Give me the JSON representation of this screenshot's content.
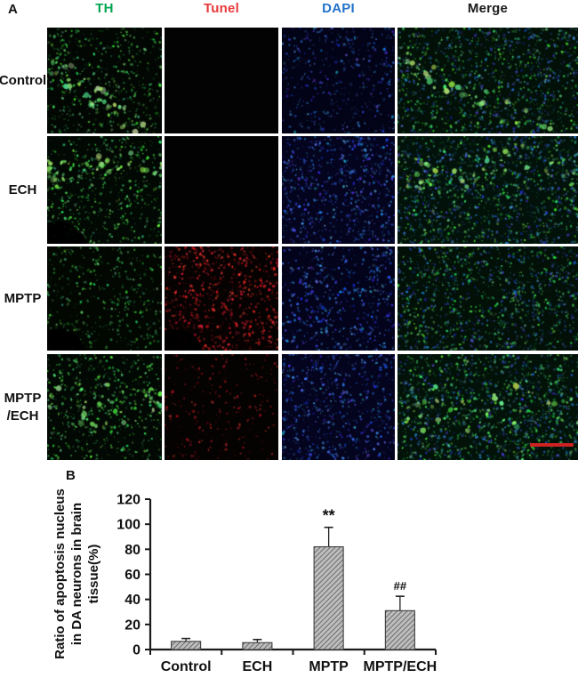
{
  "figure": {
    "panel_a_label": "A",
    "panel_b_label": "B"
  },
  "panel_a": {
    "columns": [
      {
        "label": "TH",
        "color": "#00A550"
      },
      {
        "label": "Tunel",
        "color": "#E8393B"
      },
      {
        "label": "DAPI",
        "color": "#2272C8"
      },
      {
        "label": "Merge",
        "color": "#1A1A1A"
      }
    ],
    "rows": [
      {
        "label": "Control",
        "lines": [
          "Control"
        ]
      },
      {
        "label": "ECH",
        "lines": [
          "ECH"
        ]
      },
      {
        "label": "MPTP",
        "lines": [
          "MPTP"
        ]
      },
      {
        "label": "MPTP/ECH",
        "lines": [
          "MPTP",
          "/ECH"
        ]
      }
    ],
    "cells": [
      {
        "name": "control-th",
        "bg": "#020703",
        "channels": {
          "green": 0.55
        },
        "band": "diag"
      },
      {
        "name": "control-tunel",
        "bg": "#040303",
        "channels": {}
      },
      {
        "name": "control-dapi",
        "bg": "#030317",
        "channels": {
          "blue": 0.5
        }
      },
      {
        "name": "control-merge",
        "bg": "#021007",
        "channels": {
          "green": 0.5,
          "blue": 0.45
        },
        "band": "diag"
      },
      {
        "name": "ech-th",
        "bg": "#020803",
        "channels": {
          "green": 0.6
        },
        "band": "mid",
        "darkblob": true
      },
      {
        "name": "ech-tunel",
        "bg": "#030202",
        "channels": {}
      },
      {
        "name": "ech-dapi",
        "bg": "#04041e",
        "channels": {
          "blue": 0.75
        }
      },
      {
        "name": "ech-merge",
        "bg": "#02120a",
        "channels": {
          "green": 0.55,
          "blue": 0.5
        },
        "band": "mid"
      },
      {
        "name": "mptp-th",
        "bg": "#020702",
        "channels": {
          "green": 0.45
        },
        "darkblob": true
      },
      {
        "name": "mptp-tunel",
        "bg": "#070202",
        "channels": {
          "red": 0.8
        },
        "darkblob": true
      },
      {
        "name": "mptp-dapi",
        "bg": "#03031b",
        "channels": {
          "blue": 0.65
        }
      },
      {
        "name": "mptp-merge",
        "bg": "#021008",
        "channels": {
          "green": 0.5,
          "blue": 0.45
        }
      },
      {
        "name": "mptpech-th",
        "bg": "#020803",
        "channels": {
          "green": 0.6
        },
        "band": "center"
      },
      {
        "name": "mptpech-tunel",
        "bg": "#050202",
        "channels": {
          "red": 0.3
        }
      },
      {
        "name": "mptpech-dapi",
        "bg": "#04041e",
        "channels": {
          "blue": 0.7
        }
      },
      {
        "name": "mptpech-merge",
        "bg": "#021209",
        "channels": {
          "green": 0.6,
          "blue": 0.45
        },
        "band": "center",
        "scale_bar": true
      }
    ],
    "scale_bar": {
      "color": "#CC2222"
    }
  },
  "chart_data": {
    "type": "bar",
    "title": "",
    "categories": [
      "Control",
      "ECH",
      "MPTP",
      "MPTP/ECH"
    ],
    "values": [
      6.5,
      5.5,
      82,
      31
    ],
    "errors": [
      2.3,
      2.5,
      15.5,
      11.5
    ],
    "annotations": [
      "",
      "",
      "**",
      "##"
    ],
    "ylabel_lines": [
      "Ratio of apoptosis nucleus",
      "in DA neurons in brain",
      "tissue(%)"
    ],
    "yticks": [
      0,
      20,
      40,
      60,
      80,
      100,
      120
    ],
    "ylim": [
      0,
      120
    ],
    "grid": false,
    "legend": "none",
    "bar_fill": "#bdbdbd",
    "hatch_color": "#4a4a4a",
    "axis_color": "#1a1a1a"
  }
}
